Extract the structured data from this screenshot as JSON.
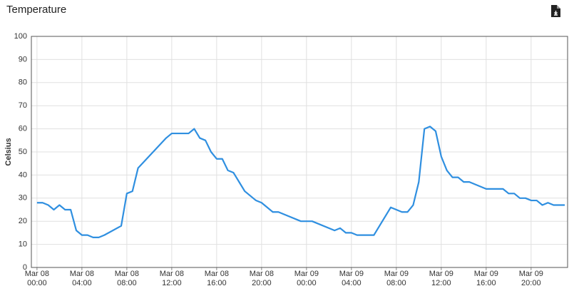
{
  "title": "Temperature",
  "chart_data": {
    "type": "line",
    "ylabel": "Celsius",
    "x": [
      "Mar 08 00:00",
      "Mar 08 00:30",
      "Mar 08 01:00",
      "Mar 08 01:30",
      "Mar 08 02:00",
      "Mar 08 02:30",
      "Mar 08 03:00",
      "Mar 08 03:30",
      "Mar 08 04:00",
      "Mar 08 04:30",
      "Mar 08 05:00",
      "Mar 08 05:30",
      "Mar 08 06:00",
      "Mar 08 07:30",
      "Mar 08 08:00",
      "Mar 08 08:30",
      "Mar 08 09:00",
      "Mar 08 11:30",
      "Mar 08 12:00",
      "Mar 08 13:30",
      "Mar 08 14:00",
      "Mar 08 14:30",
      "Mar 08 15:00",
      "Mar 08 15:30",
      "Mar 08 16:00",
      "Mar 08 16:30",
      "Mar 08 17:00",
      "Mar 08 17:30",
      "Mar 08 18:00",
      "Mar 08 18:30",
      "Mar 08 19:00",
      "Mar 08 19:30",
      "Mar 08 20:00",
      "Mar 08 20:30",
      "Mar 08 21:00",
      "Mar 08 21:30",
      "Mar 08 22:00",
      "Mar 08 23:30",
      "Mar 09 00:30",
      "Mar 09 02:30",
      "Mar 09 03:00",
      "Mar 09 03:30",
      "Mar 09 04:00",
      "Mar 09 04:30",
      "Mar 09 06:00",
      "Mar 09 07:30",
      "Mar 09 08:00",
      "Mar 09 08:30",
      "Mar 09 09:00",
      "Mar 09 09:30",
      "Mar 09 10:00",
      "Mar 09 10:30",
      "Mar 09 11:00",
      "Mar 09 11:30",
      "Mar 09 12:00",
      "Mar 09 12:30",
      "Mar 09 13:00",
      "Mar 09 13:30",
      "Mar 09 14:00",
      "Mar 09 14:30",
      "Mar 09 16:00",
      "Mar 09 17:30",
      "Mar 09 18:00",
      "Mar 09 18:30",
      "Mar 09 19:00",
      "Mar 09 19:30",
      "Mar 09 20:00",
      "Mar 09 20:30",
      "Mar 09 21:00",
      "Mar 09 21:30",
      "Mar 09 22:00",
      "Mar 09 22:30",
      "Mar 09 23:00"
    ],
    "series": [
      {
        "name": "Temperature",
        "color": "#2f8fe0",
        "values": [
          28,
          28,
          27,
          25,
          27,
          25,
          25,
          16,
          14,
          14,
          13,
          13,
          14,
          18,
          32,
          33,
          43,
          56,
          58,
          58,
          60,
          56,
          55,
          50,
          47,
          47,
          42,
          41,
          37,
          33,
          31,
          29,
          28,
          26,
          24,
          24,
          23,
          20,
          20,
          16,
          17,
          15,
          15,
          14,
          14,
          26,
          25,
          24,
          24,
          27,
          37,
          60,
          61,
          59,
          48,
          42,
          39,
          39,
          37,
          37,
          34,
          34,
          32,
          32,
          30,
          30,
          29,
          29,
          27,
          28,
          27,
          27,
          27
        ]
      }
    ],
    "xlim": [
      "Mar 07 23:30",
      "Mar 09 23:15"
    ],
    "xticks": [
      "Mar 08 00:00",
      "Mar 08 04:00",
      "Mar 08 08:00",
      "Mar 08 12:00",
      "Mar 08 16:00",
      "Mar 08 20:00",
      "Mar 09 00:00",
      "Mar 09 04:00",
      "Mar 09 08:00",
      "Mar 09 12:00",
      "Mar 09 16:00",
      "Mar 09 20:00"
    ],
    "ylim": [
      0,
      100
    ],
    "yticks": [
      0,
      10,
      20,
      30,
      40,
      50,
      60,
      70,
      80,
      90,
      100
    ],
    "grid": true
  }
}
